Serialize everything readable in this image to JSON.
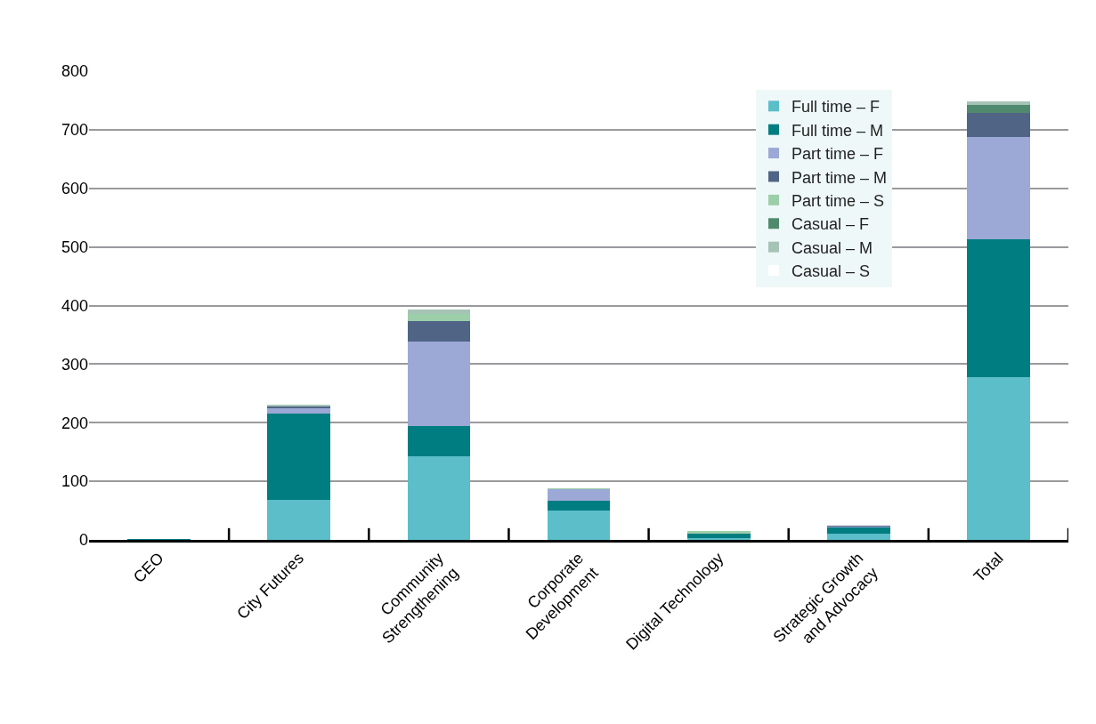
{
  "chart_data": {
    "type": "bar",
    "stacked": true,
    "categories": [
      "CEO",
      "City Futures",
      "Community\nStrengthening",
      "Corporate\nDevelopment",
      "Digital Technology",
      "Strategic Growth\nand Advocacy",
      "Total"
    ],
    "series": [
      {
        "name": "Full time – F",
        "color": "#5bbec9",
        "values": [
          0,
          69,
          143,
          50,
          3,
          10,
          278
        ]
      },
      {
        "name": "Full time – M",
        "color": "#007d80",
        "values": [
          1,
          147,
          51,
          17,
          9,
          12,
          235
        ]
      },
      {
        "name": "Part time – F",
        "color": "#9ca8d5",
        "values": [
          0,
          10,
          144,
          20,
          0,
          1,
          175
        ]
      },
      {
        "name": "Part time – M",
        "color": "#506485",
        "values": [
          0,
          2,
          35,
          0,
          0,
          1,
          40
        ]
      },
      {
        "name": "Part time – S",
        "color": "#9ccfa9",
        "values": [
          0,
          null,
          13,
          1,
          3,
          0,
          0
        ]
      },
      {
        "name": "Casual – F",
        "color": "#4f8a6e",
        "values": [
          0,
          1,
          0,
          0,
          0,
          0,
          14
        ]
      },
      {
        "name": "Casual – M",
        "color": "#a5c4b6",
        "values": [
          0,
          1,
          7,
          0,
          0,
          0,
          7
        ]
      },
      {
        "name": "Casual – S",
        "color": "#ffffff",
        "values": [
          0,
          0,
          0,
          0,
          0,
          0,
          0
        ]
      }
    ],
    "ylim": [
      0,
      800
    ],
    "yticks": [
      0,
      100,
      200,
      300,
      400,
      500,
      600,
      700,
      800
    ],
    "grid": "y",
    "legend": "top right"
  }
}
